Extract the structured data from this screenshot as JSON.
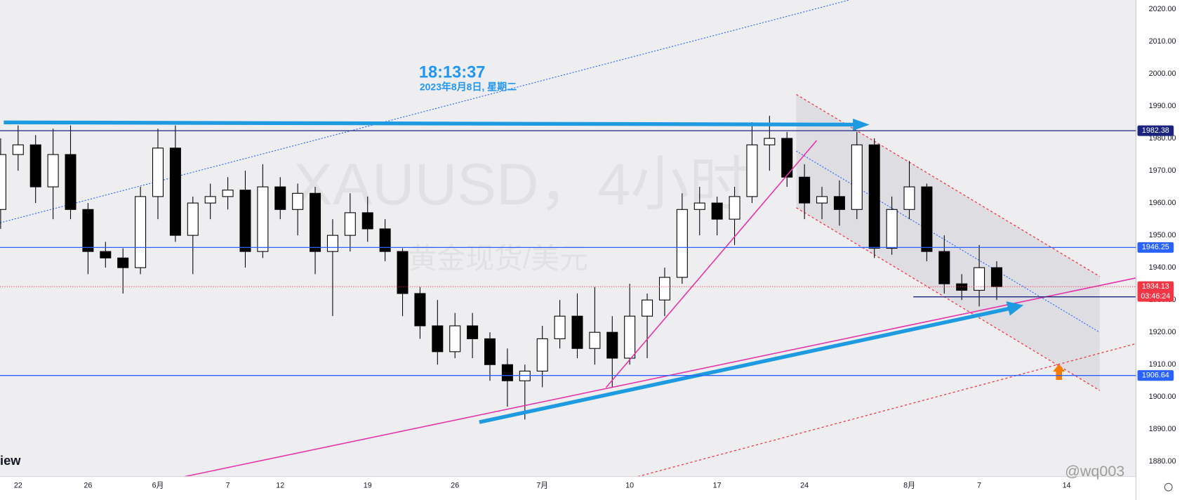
{
  "chart_data": {
    "type": "candlestick",
    "title": "XAUUSD，4小时",
    "subtitle": "黄金现货/美元",
    "clock": "18:13:37",
    "date": "2023年8月8日, 星期二",
    "logo": "iew",
    "watermark": "@wq003",
    "up_color": "#ffffff",
    "down_color": "#000000",
    "candles": {
      "x": [
        -1,
        0,
        1,
        2,
        3,
        4,
        5,
        6,
        7,
        8,
        9,
        10,
        11,
        12,
        13,
        14,
        15,
        16,
        17,
        18,
        19,
        20,
        21,
        22,
        23,
        24,
        25,
        26,
        27,
        28,
        29,
        30,
        31,
        32,
        33,
        34,
        35,
        36,
        37,
        38,
        39,
        40,
        41,
        42,
        43,
        44,
        45,
        46,
        47,
        48,
        49,
        50,
        51,
        52,
        53,
        54,
        55,
        56
      ],
      "open": [
        1958,
        1975,
        1978,
        1965,
        1975,
        1958,
        1945,
        1943,
        1940,
        1962,
        1977,
        1950,
        1960,
        1962,
        1964,
        1945,
        1965,
        1958,
        1963,
        1945,
        1950,
        1957,
        1952,
        1945,
        1932,
        1922,
        1914,
        1922,
        1918,
        1910,
        1905,
        1908,
        1918,
        1925,
        1915,
        1920,
        1912,
        1925,
        1930,
        1937,
        1958,
        1960,
        1955,
        1962,
        1978,
        1980,
        1968,
        1960,
        1962,
        1958,
        1978,
        1946,
        1958,
        1965,
        1945,
        1935,
        1933,
        1940
      ],
      "high": [
        1980,
        1984,
        1981,
        1983,
        1984,
        1960,
        1948,
        1946,
        1965,
        1983,
        1984,
        1962,
        1966,
        1968,
        1970,
        1972,
        1968,
        1966,
        1965,
        1955,
        1963,
        1962,
        1955,
        1946,
        1934,
        1930,
        1926,
        1926,
        1920,
        1915,
        1910,
        1922,
        1930,
        1932,
        1934,
        1925,
        1935,
        1932,
        1940,
        1963,
        1965,
        1962,
        1965,
        1985,
        1987,
        1982,
        1972,
        1965,
        1967,
        1982,
        1980,
        1962,
        1973,
        1966,
        1950,
        1938,
        1947,
        1942
      ],
      "low": [
        1952,
        1970,
        1960,
        1955,
        1955,
        1938,
        1940,
        1932,
        1938,
        1955,
        1948,
        1938,
        1955,
        1958,
        1940,
        1943,
        1955,
        1950,
        1938,
        1925,
        1945,
        1948,
        1942,
        1925,
        1918,
        1910,
        1912,
        1912,
        1905,
        1897,
        1893,
        1903,
        1915,
        1912,
        1910,
        1903,
        1910,
        1912,
        1925,
        1935,
        1950,
        1950,
        1947,
        1960,
        1970,
        1965,
        1955,
        1955,
        1953,
        1955,
        1943,
        1944,
        1955,
        1942,
        1932,
        1930,
        1928,
        1930
      ],
      "close": [
        1975,
        1978,
        1965,
        1975,
        1958,
        1945,
        1943,
        1940,
        1962,
        1977,
        1950,
        1960,
        1962,
        1964,
        1945,
        1965,
        1958,
        1963,
        1945,
        1950,
        1957,
        1952,
        1945,
        1932,
        1922,
        1914,
        1922,
        1918,
        1910,
        1905,
        1908,
        1918,
        1925,
        1915,
        1920,
        1912,
        1925,
        1930,
        1937,
        1958,
        1960,
        1955,
        1962,
        1978,
        1980,
        1968,
        1960,
        1962,
        1958,
        1978,
        1946,
        1958,
        1965,
        1945,
        1935,
        1933,
        1940,
        1934.13
      ]
    },
    "xlim": [
      -1.037,
      63.97
    ],
    "xticks": [
      {
        "value": 0,
        "label": "22"
      },
      {
        "value": 4,
        "label": "26"
      },
      {
        "value": 8,
        "label": "6月"
      },
      {
        "value": 12,
        "label": "7"
      },
      {
        "value": 15,
        "label": "12"
      },
      {
        "value": 20,
        "label": "19"
      },
      {
        "value": 25,
        "label": "26"
      },
      {
        "value": 30,
        "label": "7月"
      },
      {
        "value": 35,
        "label": "10"
      },
      {
        "value": 40,
        "label": "17"
      },
      {
        "value": 45,
        "label": "24"
      },
      {
        "value": 51,
        "label": "8月"
      },
      {
        "value": 55,
        "label": "7"
      },
      {
        "value": 60,
        "label": "14"
      }
    ],
    "ylim": [
      1875.37,
      2022.8
    ],
    "yticks": [
      {
        "value": 1880,
        "label": "1880.00"
      },
      {
        "value": 1890,
        "label": "1890.00"
      },
      {
        "value": 1900,
        "label": "1900.00"
      },
      {
        "value": 1910,
        "label": "1910.00"
      },
      {
        "value": 1920,
        "label": "1920.00"
      },
      {
        "value": 1930,
        "label": "1930.00"
      },
      {
        "value": 1940,
        "label": "1940.00"
      },
      {
        "value": 1950,
        "label": "1950.00"
      },
      {
        "value": 1960,
        "label": "1960.00"
      },
      {
        "value": 1970,
        "label": "1970.00"
      },
      {
        "value": 1980,
        "label": "1980.00"
      },
      {
        "value": 1990,
        "label": "1990.00"
      },
      {
        "value": 2000,
        "label": "2000.00"
      },
      {
        "value": 2010,
        "label": "2010.00"
      },
      {
        "value": 2020,
        "label": "2020.00"
      }
    ],
    "horizontal_lines": [
      {
        "value": 1982.38,
        "color": "#1a237e"
      },
      {
        "value": 1946.25,
        "color": "#2962ff"
      },
      {
        "value": 1906.64,
        "color": "#2962ff"
      }
    ],
    "last_price": 1934.13,
    "countdown": "03:46:24",
    "last_color": "#f23645"
  }
}
